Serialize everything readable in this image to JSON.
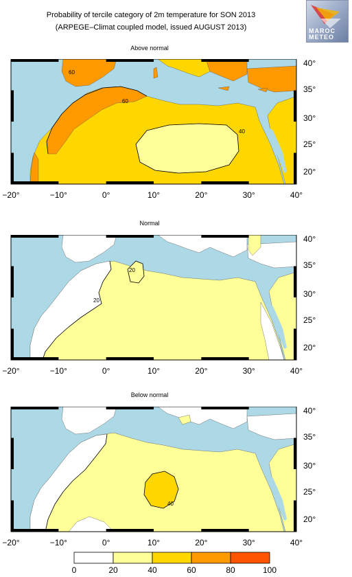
{
  "header": {
    "title_line1": "Probability of tercile category of 2m temperature for SON 2013",
    "title_line2": "(ARPEGE–Climat coupled model, issued AUGUST 2013)"
  },
  "logo": {
    "text_line1": "MAROC",
    "text_line2": "METEO"
  },
  "colors": {
    "sea": "#add8e6",
    "bin_0_20": "#ffffff",
    "bin_20_40": "#ffff99",
    "bin_40_60": "#ffd700",
    "bin_60_80": "#ff9900",
    "bin_80_100": "#ff5500"
  },
  "panels": [
    {
      "title": "Above normal",
      "contour_labels": [
        "60",
        "60",
        "40"
      ]
    },
    {
      "title": "Normal",
      "contour_labels": [
        "20",
        "20"
      ]
    },
    {
      "title": "Below normal",
      "contour_labels": [
        "40"
      ]
    }
  ],
  "axes": {
    "x_ticks": [
      "−20°",
      "−10°",
      "0°",
      "10°",
      "20°",
      "30°",
      "40°"
    ],
    "y_ticks": [
      "40°",
      "35°",
      "30°",
      "25°",
      "20°"
    ]
  },
  "colorbar": {
    "labels": [
      "0",
      "20",
      "40",
      "60",
      "80",
      "100"
    ]
  }
}
